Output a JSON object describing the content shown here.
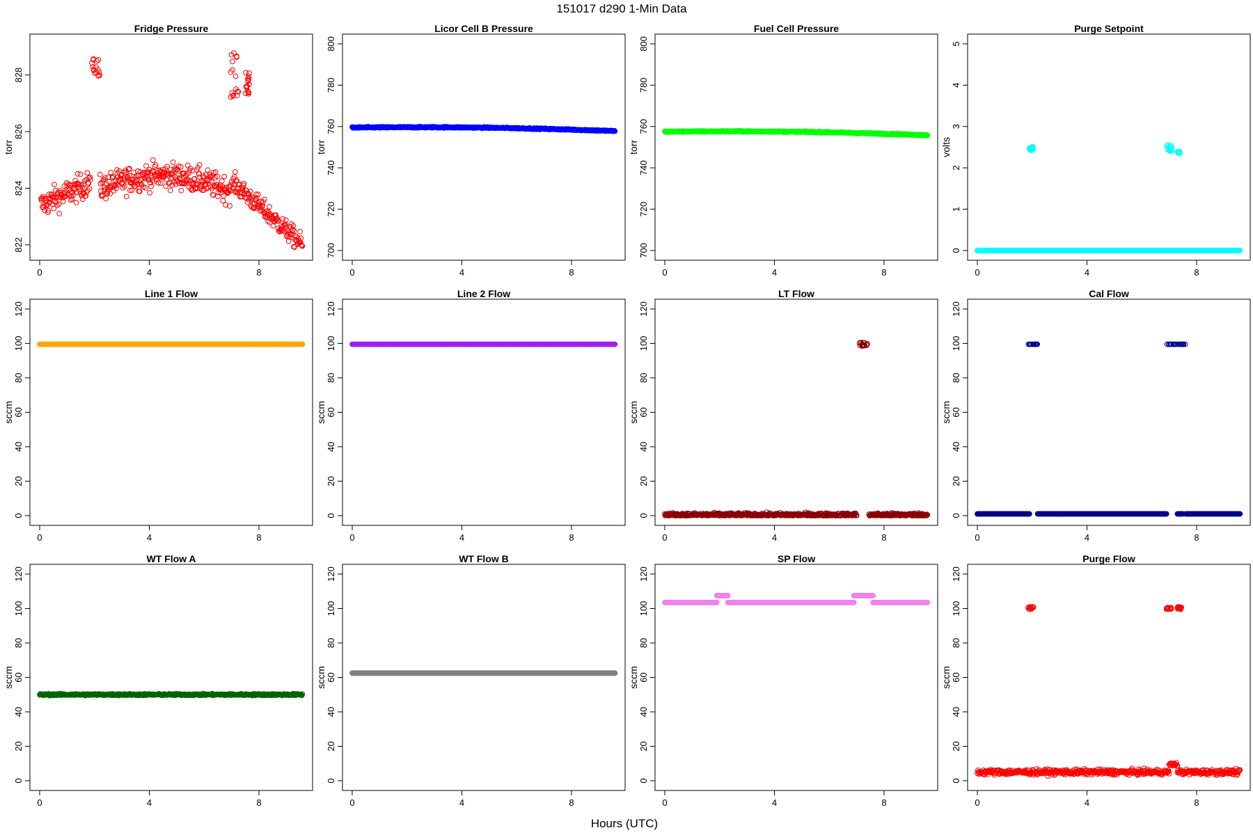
{
  "figure": {
    "title": "151017   d290   1-Min Data",
    "xlabel": "Hours (UTC)"
  },
  "chart_data": [
    {
      "type": "scatter",
      "title": "Fridge Pressure",
      "ylabel": "torr",
      "color": "#ff0000",
      "xlim": [
        0,
        9.6
      ],
      "ylim": [
        821.8,
        829.1
      ],
      "xticks": [
        0,
        4,
        8
      ],
      "yticks": [
        822,
        824,
        826,
        828
      ],
      "segments": [
        {
          "x0": 0.05,
          "x1": 1.85,
          "y0": 823.4,
          "y1": 824.2,
          "noise": 0.45
        },
        {
          "x0": 2.2,
          "x1": 7.0,
          "y0": 824.0,
          "y1": 823.9,
          "noise": 0.45,
          "bump": 0.5
        },
        {
          "x0": 7.05,
          "x1": 9.6,
          "y0": 824.2,
          "y1": 822.0,
          "noise": 0.35
        }
      ],
      "clusters": [
        {
          "x": [
            1.9,
            2.2
          ],
          "y": [
            827.7,
            828.6
          ]
        },
        {
          "x": [
            6.95,
            7.25
          ],
          "y": [
            827.2,
            829.1
          ]
        },
        {
          "x": [
            7.5,
            7.65
          ],
          "y": [
            827.3,
            828.1
          ]
        }
      ]
    },
    {
      "type": "scatter",
      "title": "Licor Cell B Pressure",
      "ylabel": "torr",
      "color": "#0000ff",
      "xlim": [
        0,
        9.6
      ],
      "ylim": [
        700,
        800
      ],
      "xticks": [
        0,
        4,
        8
      ],
      "yticks": [
        700,
        720,
        740,
        760,
        780,
        800
      ],
      "segments": [
        {
          "x0": 0.0,
          "x1": 9.6,
          "y0": 759.5,
          "y1": 757.8,
          "noise": 0.3,
          "bump": 0.8
        }
      ]
    },
    {
      "type": "scatter",
      "title": "Fuel Cell Pressure",
      "ylabel": "torr",
      "color": "#00ff00",
      "xlim": [
        0,
        9.6
      ],
      "ylim": [
        700,
        800
      ],
      "xticks": [
        0,
        4,
        8
      ],
      "yticks": [
        700,
        720,
        740,
        760,
        780,
        800
      ],
      "segments": [
        {
          "x0": 0.0,
          "x1": 9.6,
          "y0": 757.5,
          "y1": 755.8,
          "noise": 0.3,
          "bump": 0.8
        }
      ]
    },
    {
      "type": "scatter",
      "title": "Purge Setpoint",
      "ylabel": "volts",
      "color": "#00ffff",
      "xlim": [
        0,
        9.6
      ],
      "ylim": [
        0,
        5
      ],
      "xticks": [
        0,
        4,
        8
      ],
      "yticks": [
        0,
        1,
        2,
        3,
        4,
        5
      ],
      "segments": [
        {
          "x0": 0.0,
          "x1": 9.6,
          "y0": 0.0,
          "y1": 0.0,
          "noise": 0.0
        }
      ],
      "clusters": [
        {
          "x": [
            1.85,
            2.05
          ],
          "y": [
            2.42,
            2.52
          ]
        },
        {
          "x": [
            6.9,
            7.1
          ],
          "y": [
            2.4,
            2.55
          ]
        },
        {
          "x": [
            7.3,
            7.4
          ],
          "y": [
            2.35,
            2.4
          ]
        }
      ]
    },
    {
      "type": "scatter",
      "title": "Line 1 Flow",
      "ylabel": "sccm",
      "color": "#ffa500",
      "xlim": [
        0,
        9.6
      ],
      "ylim": [
        0,
        120
      ],
      "xticks": [
        0,
        4,
        8
      ],
      "yticks": [
        0,
        20,
        40,
        60,
        80,
        100,
        120
      ],
      "segments": [
        {
          "x0": 0.0,
          "x1": 9.6,
          "y0": 99.5,
          "y1": 99.5,
          "noise": 0.0
        }
      ]
    },
    {
      "type": "scatter",
      "title": "Line 2 Flow",
      "ylabel": "sccm",
      "color": "#a020f0",
      "xlim": [
        0,
        9.6
      ],
      "ylim": [
        0,
        120
      ],
      "xticks": [
        0,
        4,
        8
      ],
      "yticks": [
        0,
        20,
        40,
        60,
        80,
        100,
        120
      ],
      "segments": [
        {
          "x0": 0.0,
          "x1": 9.6,
          "y0": 99.5,
          "y1": 99.5,
          "noise": 0.0
        }
      ]
    },
    {
      "type": "scatter",
      "title": "LT Flow",
      "ylabel": "sccm",
      "color": "#8b0000",
      "xlim": [
        0,
        9.6
      ],
      "ylim": [
        0,
        120
      ],
      "xticks": [
        0,
        4,
        8
      ],
      "yticks": [
        0,
        20,
        40,
        60,
        80,
        100,
        120
      ],
      "segments": [
        {
          "x0": 0.0,
          "x1": 7.0,
          "y0": 0.5,
          "y1": 0.5,
          "noise": 1.0
        },
        {
          "x0": 7.45,
          "x1": 9.6,
          "y0": 0.5,
          "y1": 0.5,
          "noise": 1.0
        }
      ],
      "clusters": [
        {
          "x": [
            7.1,
            7.4
          ],
          "y": [
            98.5,
            100.5
          ]
        }
      ]
    },
    {
      "type": "scatter",
      "title": "Cal Flow",
      "ylabel": "sccm",
      "color": "#00008b",
      "xlim": [
        0,
        9.6
      ],
      "ylim": [
        0,
        120
      ],
      "xticks": [
        0,
        4,
        8
      ],
      "yticks": [
        0,
        20,
        40,
        60,
        80,
        100,
        120
      ],
      "segments": [
        {
          "x0": 0.0,
          "x1": 1.9,
          "y0": 1.0,
          "y1": 1.0,
          "noise": 0.0
        },
        {
          "x0": 2.2,
          "x1": 6.9,
          "y0": 1.0,
          "y1": 1.0,
          "noise": 0.0
        },
        {
          "x0": 7.3,
          "x1": 7.5,
          "y0": 1.0,
          "y1": 1.0,
          "noise": 0.0
        },
        {
          "x0": 7.6,
          "x1": 9.6,
          "y0": 1.0,
          "y1": 1.0,
          "noise": 0.0
        }
      ],
      "clusters": [
        {
          "x": [
            1.85,
            2.2
          ],
          "y": [
            99.5,
            99.5
          ]
        },
        {
          "x": [
            6.9,
            7.3
          ],
          "y": [
            99.5,
            99.5
          ]
        },
        {
          "x": [
            7.35,
            7.6
          ],
          "y": [
            99.5,
            99.5
          ]
        }
      ]
    },
    {
      "type": "scatter",
      "title": "WT Flow A",
      "ylabel": "sccm",
      "color": "#006400",
      "xlim": [
        0,
        9.6
      ],
      "ylim": [
        0,
        120
      ],
      "xticks": [
        0,
        4,
        8
      ],
      "yticks": [
        0,
        20,
        40,
        60,
        80,
        100,
        120
      ],
      "segments": [
        {
          "x0": 0.0,
          "x1": 9.6,
          "y0": 50.0,
          "y1": 50.0,
          "noise": 0.5
        }
      ]
    },
    {
      "type": "scatter",
      "title": "WT Flow B",
      "ylabel": "sccm",
      "color": "#808080",
      "xlim": [
        0,
        9.6
      ],
      "ylim": [
        0,
        120
      ],
      "xticks": [
        0,
        4,
        8
      ],
      "yticks": [
        0,
        20,
        40,
        60,
        80,
        100,
        120
      ],
      "segments": [
        {
          "x0": 0.0,
          "x1": 9.6,
          "y0": 62.5,
          "y1": 62.5,
          "noise": 0.0
        }
      ]
    },
    {
      "type": "scatter",
      "title": "SP Flow",
      "ylabel": "sccm",
      "color": "#ee82ee",
      "xlim": [
        0,
        9.6
      ],
      "ylim": [
        0,
        120
      ],
      "xticks": [
        0,
        4,
        8
      ],
      "yticks": [
        0,
        20,
        40,
        60,
        80,
        100,
        120
      ],
      "segments": [
        {
          "x0": 0.0,
          "x1": 1.9,
          "y0": 103.5,
          "y1": 103.5,
          "noise": 0.0
        },
        {
          "x0": 1.9,
          "x1": 2.3,
          "y0": 107.5,
          "y1": 107.5,
          "noise": 0.0
        },
        {
          "x0": 2.3,
          "x1": 6.9,
          "y0": 103.5,
          "y1": 103.5,
          "noise": 0.0
        },
        {
          "x0": 6.9,
          "x1": 7.6,
          "y0": 107.5,
          "y1": 107.5,
          "noise": 0.0
        },
        {
          "x0": 7.6,
          "x1": 9.6,
          "y0": 103.5,
          "y1": 103.5,
          "noise": 0.0
        }
      ]
    },
    {
      "type": "scatter",
      "title": "Purge Flow",
      "ylabel": "sccm",
      "color": "#ff0000",
      "xlim": [
        0,
        9.6
      ],
      "ylim": [
        0,
        120
      ],
      "xticks": [
        0,
        4,
        8
      ],
      "yticks": [
        0,
        20,
        40,
        60,
        80,
        100,
        120
      ],
      "segments": [
        {
          "x0": 0.0,
          "x1": 7.0,
          "y0": 5.0,
          "y1": 5.0,
          "noise": 1.5
        },
        {
          "x0": 7.0,
          "x1": 7.3,
          "y0": 9.5,
          "y1": 9.5,
          "noise": 1.0
        },
        {
          "x0": 7.3,
          "x1": 9.6,
          "y0": 5.0,
          "y1": 5.0,
          "noise": 1.5
        }
      ],
      "clusters": [
        {
          "x": [
            1.85,
            2.05
          ],
          "y": [
            99.5,
            101
          ]
        },
        {
          "x": [
            6.9,
            7.1
          ],
          "y": [
            99.5,
            100.5
          ]
        },
        {
          "x": [
            7.3,
            7.45
          ],
          "y": [
            99,
            101
          ]
        }
      ]
    }
  ]
}
